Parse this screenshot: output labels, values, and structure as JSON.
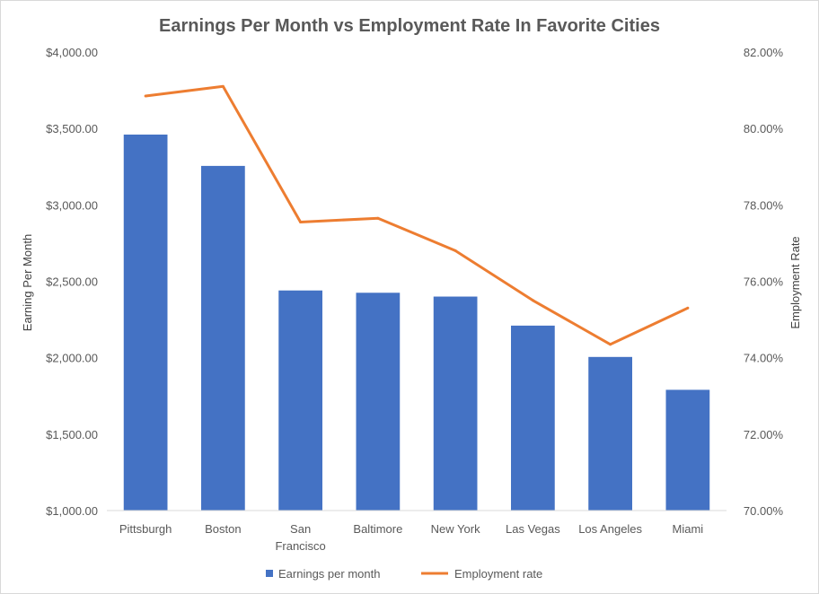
{
  "chart_data": {
    "type": "bar",
    "title": "Earnings Per Month vs Employment Rate In Favorite Cities",
    "categories": [
      "Pittsburgh",
      "Boston",
      "San Francisco",
      "Baltimore",
      "New York",
      "Las Vegas",
      "Los Angeles",
      "Miami"
    ],
    "category_lines": [
      [
        "Pittsburgh"
      ],
      [
        "Boston"
      ],
      [
        "San",
        "Francisco"
      ],
      [
        "Baltimore"
      ],
      [
        "New York"
      ],
      [
        "Las Vegas"
      ],
      [
        "Los Angeles"
      ],
      [
        "Miami"
      ]
    ],
    "series": [
      {
        "name": "Earnings per month",
        "type": "bar",
        "axis": "left",
        "color": "#4472c4",
        "values": [
          3460,
          3255,
          2440,
          2425,
          2400,
          2210,
          2005,
          1790
        ]
      },
      {
        "name": "Employment rate",
        "type": "line",
        "axis": "right",
        "color": "#ed7d31",
        "values": [
          80.85,
          81.1,
          77.55,
          77.65,
          76.8,
          75.5,
          74.35,
          75.3
        ]
      }
    ],
    "y_left": {
      "label": "Earning Per Month",
      "min": 1000,
      "max": 4000,
      "ticks": [
        1000,
        1500,
        2000,
        2500,
        3000,
        3500,
        4000
      ],
      "tick_labels": [
        "$1,000.00",
        "$1,500.00",
        "$2,000.00",
        "$2,500.00",
        "$3,000.00",
        "$3,500.00",
        "$4,000.00"
      ]
    },
    "y_right": {
      "label": "Employment Rate",
      "min": 70,
      "max": 82,
      "ticks": [
        70,
        72,
        74,
        76,
        78,
        80,
        82
      ],
      "tick_labels": [
        "70.00%",
        "72.00%",
        "74.00%",
        "76.00%",
        "78.00%",
        "80.00%",
        "82.00%"
      ]
    },
    "grid": false,
    "legend": "bottom"
  }
}
